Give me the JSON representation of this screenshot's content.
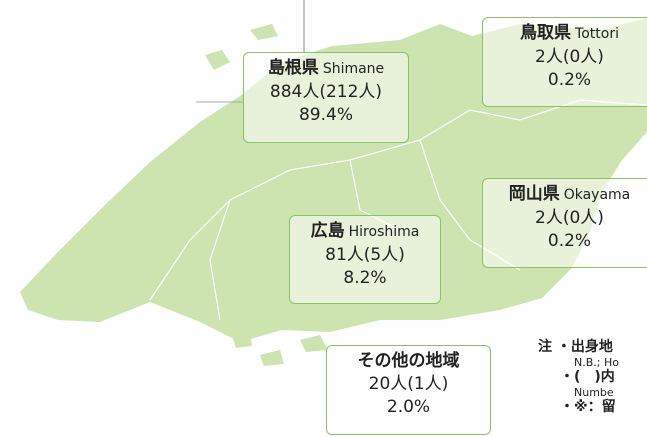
{
  "regions": [
    {
      "name": "島根県",
      "name_en": "Shimane",
      "count": "884人(212人)",
      "percent": "89.4%"
    },
    {
      "name": "鳥取県",
      "name_en": "Tottori",
      "count": "2人(0人)",
      "percent": "0.2%"
    },
    {
      "name": "岡山県",
      "name_en": "Okayama",
      "count": "2人(0人)",
      "percent": "0.2%"
    },
    {
      "name": "広島",
      "name_en": "Hiroshima",
      "count": "81人(5人)",
      "percent": "8.2%"
    },
    {
      "name": "その他の地域",
      "count": "20人(1人)",
      "percent": "2.0%"
    }
  ],
  "notes": {
    "marker": "注",
    "items": [
      "・出身地",
      "N.B.; Ho",
      "・(　)内",
      "Numbe",
      "・※：留"
    ]
  }
}
